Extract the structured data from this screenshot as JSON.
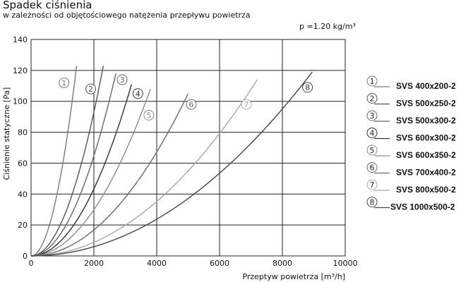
{
  "header": {
    "title": "Spadek ciśnienia",
    "subtitle": "w zależności od objętościowego natężenia przepływu powietrza",
    "density_note": "p =1.20 kg/m³"
  },
  "chart_data": {
    "type": "line",
    "xlabel": "Przeptyw powietrza [m³/h]",
    "ylabel": "Ciśnienie statyczne [Pa]",
    "xlim": [
      0,
      10000
    ],
    "ylim": [
      0,
      140
    ],
    "xticks": [
      0,
      2000,
      4000,
      6000,
      8000,
      10000
    ],
    "yticks": [
      0,
      20,
      40,
      60,
      80,
      100,
      120,
      140
    ],
    "grid": true,
    "legend_position": "right",
    "series": [
      {
        "marker": "1",
        "name": "SVS 400x200-2",
        "color": "#7a7a7a",
        "x_end": 1450,
        "y_end": 123
      },
      {
        "marker": "2",
        "name": "SVS 500x250-2",
        "color": "#555555",
        "x_end": 2300,
        "y_end": 123
      },
      {
        "marker": "3",
        "name": "SVS 500x300-2",
        "color": "#666666",
        "x_end": 2700,
        "y_end": 118
      },
      {
        "marker": "4",
        "name": "SVS 600x300-2",
        "color": "#333333",
        "x_end": 3200,
        "y_end": 111
      },
      {
        "marker": "5",
        "name": "SVS 600x350-2",
        "color": "#8c8c8c",
        "x_end": 3800,
        "y_end": 108
      },
      {
        "marker": "6",
        "name": "SVS 700x400-2",
        "color": "#6a6a6a",
        "x_end": 5000,
        "y_end": 105
      },
      {
        "marker": "7",
        "name": "SVS 800x500-2",
        "color": "#a8a8a8",
        "x_end": 7200,
        "y_end": 114
      },
      {
        "marker": "8",
        "name": "SVS 1000x500-2",
        "color": "#444444",
        "x_end": 8950,
        "y_end": 119
      }
    ],
    "curve_markers": [
      {
        "series": "1",
        "x": 1050,
        "y": 112
      },
      {
        "series": "2",
        "x": 1900,
        "y": 108
      },
      {
        "series": "3",
        "x": 2900,
        "y": 114
      },
      {
        "series": "4",
        "x": 3400,
        "y": 105
      },
      {
        "series": "5",
        "x": 3750,
        "y": 91
      },
      {
        "series": "6",
        "x": 5100,
        "y": 98
      },
      {
        "series": "7",
        "x": 6850,
        "y": 98
      },
      {
        "series": "8",
        "x": 8800,
        "y": 109
      }
    ]
  }
}
